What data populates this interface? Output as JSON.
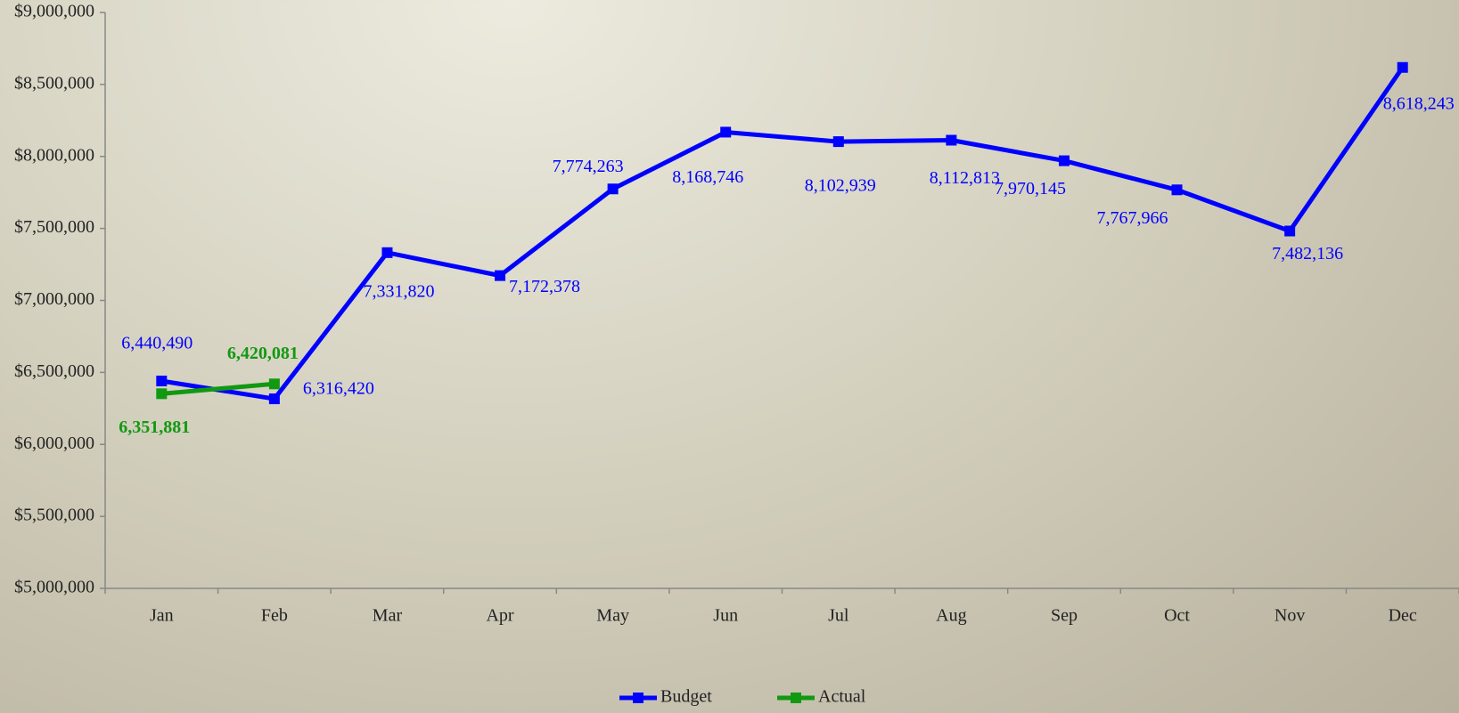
{
  "chart_data": {
    "type": "line",
    "categories": [
      "Jan",
      "Feb",
      "Mar",
      "Apr",
      "May",
      "Jun",
      "Jul",
      "Aug",
      "Sep",
      "Oct",
      "Nov",
      "Dec"
    ],
    "series": [
      {
        "name": "Budget",
        "color": "#0000ff",
        "values": [
          6440490,
          6316420,
          7331820,
          7172378,
          7774263,
          8168746,
          8102939,
          8112813,
          7970145,
          7767966,
          7482136,
          8618243
        ],
        "value_labels": [
          "6,440,490",
          "6,316,420",
          "7,331,820",
          "7,172,378",
          "7,774,263",
          "8,168,746",
          "8,102,939",
          "8,112,813",
          "7,970,145",
          "7,767,966",
          "7,482,136",
          "8,618,243"
        ]
      },
      {
        "name": "Actual",
        "color": "#119911",
        "values": [
          6351881,
          6420081,
          null,
          null,
          null,
          null,
          null,
          null,
          null,
          null,
          null,
          null
        ],
        "value_labels": [
          "6,351,881",
          "6,420,081",
          null,
          null,
          null,
          null,
          null,
          null,
          null,
          null,
          null,
          null
        ]
      }
    ],
    "ylim": [
      5000000,
      9000000
    ],
    "yticks": [
      {
        "value": 5000000,
        "label": "$5,000,000"
      },
      {
        "value": 5500000,
        "label": "$5,500,000"
      },
      {
        "value": 6000000,
        "label": "$6,000,000"
      },
      {
        "value": 6500000,
        "label": "$6,500,000"
      },
      {
        "value": 7000000,
        "label": "$7,000,000"
      },
      {
        "value": 7500000,
        "label": "$7,500,000"
      },
      {
        "value": 8000000,
        "label": "$8,000,000"
      },
      {
        "value": 8500000,
        "label": "$8,500,000"
      },
      {
        "value": 9000000,
        "label": "$9,000,000"
      }
    ],
    "grid": false,
    "legend": "bottom"
  }
}
